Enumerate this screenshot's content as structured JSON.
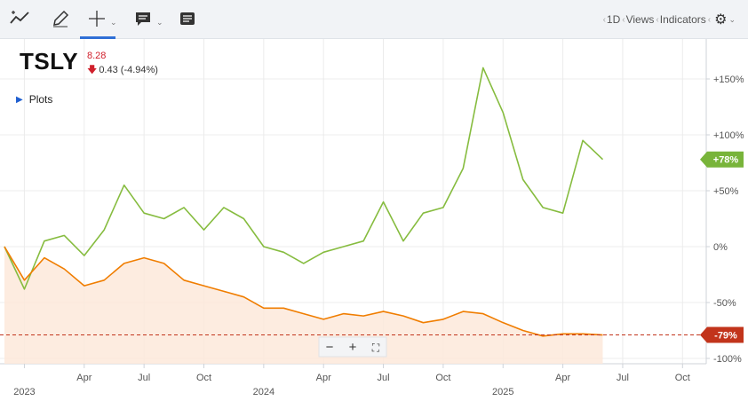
{
  "toolbar": {
    "views_interval": "1D",
    "views_label": "Views",
    "indicators_label": "Indicators"
  },
  "header": {
    "symbol": "TSLY",
    "price": "8.28",
    "change": "0.43 (-4.94%)"
  },
  "plots_label": "Plots",
  "zoom": {
    "minus": "−",
    "plus": "+",
    "fit": "⛶"
  },
  "colors": {
    "green": "#86bc3f",
    "orange": "#f07d00",
    "orange_fill": "#fde9db",
    "green_badge": "#78b43a",
    "red_badge": "#c2341b"
  },
  "chart_data": {
    "type": "line",
    "x": [
      "2022-12",
      "2023-01",
      "2023-02",
      "2023-03",
      "2023-04",
      "2023-05",
      "2023-06",
      "2023-07",
      "2023-08",
      "2023-09",
      "2023-10",
      "2023-11",
      "2023-12",
      "2024-01",
      "2024-02",
      "2024-03",
      "2024-04",
      "2024-05",
      "2024-06",
      "2024-07",
      "2024-08",
      "2024-09",
      "2024-10",
      "2024-11",
      "2024-12",
      "2025-01",
      "2025-02",
      "2025-03",
      "2025-04",
      "2025-05",
      "2025-06"
    ],
    "series": [
      {
        "values": [
          0,
          -38,
          5,
          10,
          -8,
          15,
          55,
          30,
          25,
          35,
          15,
          35,
          25,
          0,
          -5,
          -15,
          -5,
          0,
          5,
          40,
          5,
          30,
          35,
          70,
          160,
          120,
          60,
          35,
          30,
          95,
          78
        ]
      },
      {
        "values": [
          0,
          -30,
          -10,
          -20,
          -35,
          -30,
          -15,
          -10,
          -15,
          -30,
          -35,
          -40,
          -45,
          -55,
          -55,
          -60,
          -65,
          -60,
          -62,
          -58,
          -62,
          -68,
          -65,
          -58,
          -60,
          -68,
          -75,
          -80,
          -78,
          -78,
          -79
        ]
      }
    ],
    "y_ticks": [
      "+150%",
      "+100%",
      "+50%",
      "0%",
      "-50%",
      "-100%"
    ],
    "x_ticks": [
      "Apr",
      "Jul",
      "Oct",
      "Apr",
      "Jul",
      "Oct",
      "Apr",
      "Jul",
      "Oct"
    ],
    "year_ticks": [
      "2023",
      "2024",
      "2025"
    ],
    "ylim": [
      -100,
      150
    ],
    "last_labels": [
      "+78%",
      "-79%"
    ]
  }
}
